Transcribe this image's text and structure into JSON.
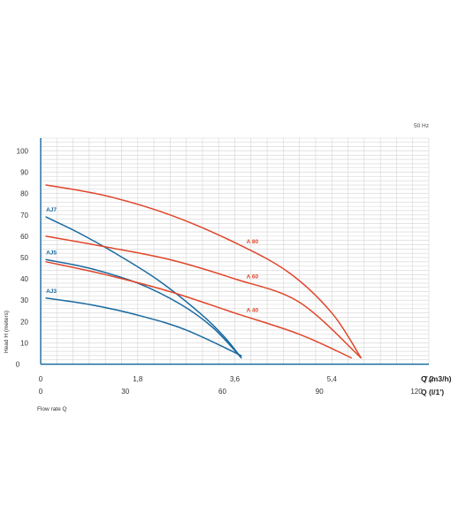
{
  "chart_data": {
    "type": "line",
    "frequency": "50 Hz",
    "ylabel": "Head H (meters)",
    "xlabel": "Flow rate Q",
    "ylim": [
      0,
      106
    ],
    "y_ticks": [
      10,
      20,
      30,
      40,
      50,
      60,
      70,
      80,
      90,
      100
    ],
    "y_zero_label": "0",
    "x_axis_primary": {
      "unit_label": "Q (m3/h)",
      "ticks": [
        "0",
        "1,8",
        "3,6",
        "5,4",
        "7,2"
      ],
      "tick_values": [
        0,
        1.8,
        3.6,
        5.4,
        7.2
      ]
    },
    "x_axis_secondary": {
      "unit_label": "Q (l/1')",
      "ticks": [
        "0",
        "30",
        "60",
        "90",
        "120"
      ],
      "tick_values": [
        0,
        30,
        60,
        90,
        120
      ]
    },
    "xlim": [
      0,
      7.2
    ],
    "grid": true,
    "colors": {
      "aj": "#1a6aa0",
      "a": "#e0462a",
      "grid": "#d4d4d4",
      "axis": "#1a6aa0"
    },
    "series": [
      {
        "name": "AJ7",
        "color": "#1a6aa0",
        "x": [
          0.1,
          0.75,
          1.45,
          2.2,
          2.95,
          3.4,
          3.72
        ],
        "y": [
          69,
          61,
          51,
          39,
          24,
          13,
          3
        ]
      },
      {
        "name": "AJ5",
        "color": "#1a6aa0",
        "x": [
          0.1,
          0.9,
          1.8,
          2.6,
          3.2,
          3.72
        ],
        "y": [
          49,
          45,
          38,
          28,
          17,
          3
        ]
      },
      {
        "name": "AJ3",
        "color": "#1a6aa0",
        "x": [
          0.1,
          0.9,
          1.8,
          2.7,
          3.72
        ],
        "y": [
          31,
          28,
          23,
          16,
          4
        ]
      },
      {
        "name": "A 80",
        "color": "#e0462a",
        "x": [
          0.1,
          1.2,
          2.4,
          3.6,
          4.6,
          5.4,
          5.94
        ],
        "y": [
          84,
          79,
          70,
          57,
          43,
          24,
          3
        ]
      },
      {
        "name": "A 60",
        "color": "#e0462a",
        "x": [
          0.1,
          1.2,
          2.4,
          3.6,
          4.8,
          5.94
        ],
        "y": [
          60,
          55,
          49,
          40,
          29,
          3
        ]
      },
      {
        "name": "A 40",
        "color": "#e0462a",
        "x": [
          0.1,
          1.2,
          2.4,
          3.6,
          4.8,
          5.76
        ],
        "y": [
          48,
          42,
          34,
          24,
          14,
          3
        ]
      }
    ]
  }
}
